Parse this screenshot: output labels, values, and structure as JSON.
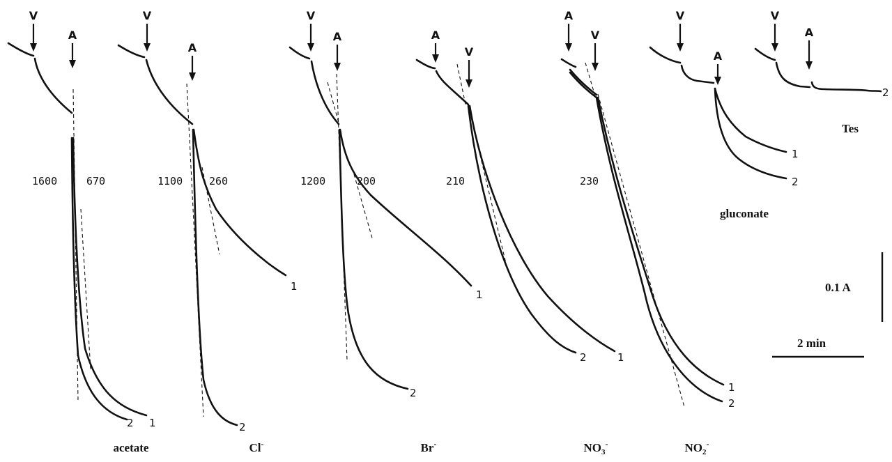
{
  "chart_data": {
    "type": "line",
    "title": "",
    "markers": {
      "valinomycin": "V",
      "addition": "A"
    },
    "curve_numbers": [
      "1",
      "2"
    ],
    "scale_bar": {
      "absorbance_label": "0.1 A",
      "time_label": "2 min"
    },
    "panels": [
      {
        "id": "acetate",
        "label": "acetate",
        "marker_order": [
          "V",
          "A"
        ],
        "rates": [
          "1600",
          "670"
        ],
        "curves": [
          "2",
          "1"
        ]
      },
      {
        "id": "chloride",
        "label": "Cl",
        "label_sup": "-",
        "marker_order": [
          "V",
          "A"
        ],
        "rates": [
          "1100",
          "260"
        ],
        "curves": [
          "1",
          "2"
        ]
      },
      {
        "id": "bromide",
        "label": "Br",
        "label_sup": "-",
        "marker_order": [
          "V",
          "A"
        ],
        "rates": [
          "1200",
          "200"
        ],
        "curves": [
          "1",
          "2"
        ]
      },
      {
        "id": "nitrate",
        "label": "NO",
        "label_sub": "3",
        "label_sup": "-",
        "marker_order": [
          "A",
          "V"
        ],
        "rates": [
          "210"
        ],
        "curves": [
          "2",
          "1"
        ]
      },
      {
        "id": "nitrite",
        "label": "NO",
        "label_sub": "2",
        "label_sup": "-",
        "marker_order": [
          "A",
          "V"
        ],
        "rates": [
          "230"
        ],
        "curves": [
          "1",
          "2"
        ]
      },
      {
        "id": "gluconate",
        "label": "gluconate",
        "marker_order": [
          "V",
          "A"
        ],
        "rates": [],
        "curves": [
          "1",
          "2"
        ]
      },
      {
        "id": "tes",
        "label": "Tes",
        "marker_order": [
          "V",
          "A"
        ],
        "rates": [],
        "curves": [
          "2"
        ]
      }
    ]
  }
}
